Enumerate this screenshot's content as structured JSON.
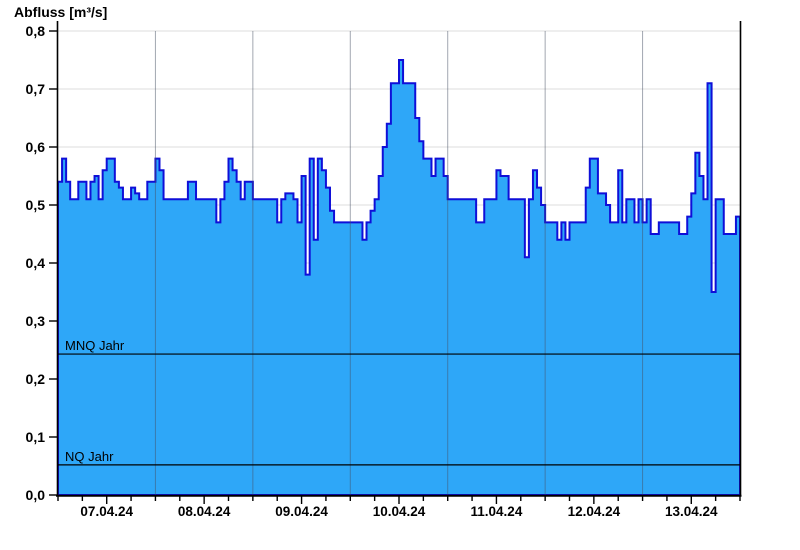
{
  "title": "Abfluss [m³/s]",
  "chart_data": {
    "type": "area",
    "title": "Abfluss [m³/s]",
    "ylabel": "Abfluss [m³/s]",
    "unit": "m³/s",
    "ylim": [
      0,
      0.8
    ],
    "y_tick_step": 0.1,
    "y_tick_labels": [
      "0,0",
      "0,1",
      "0,2",
      "0,3",
      "0,4",
      "0,5",
      "0,6",
      "0,7",
      "0,8"
    ],
    "x_tick_labels": [
      "07.04.24",
      "08.04.24",
      "09.04.24",
      "10.04.24",
      "11.04.24",
      "12.04.24",
      "13.04.24"
    ],
    "points_per_day": 24,
    "interval": "1 hour",
    "grid": true,
    "legend_position": "none",
    "series": [
      {
        "name": "Abfluss",
        "values": [
          0.54,
          0.58,
          0.54,
          0.51,
          0.51,
          0.54,
          0.54,
          0.51,
          0.54,
          0.55,
          0.51,
          0.56,
          0.58,
          0.58,
          0.54,
          0.53,
          0.51,
          0.51,
          0.53,
          0.52,
          0.51,
          0.51,
          0.54,
          0.54,
          0.58,
          0.56,
          0.51,
          0.51,
          0.51,
          0.51,
          0.51,
          0.51,
          0.54,
          0.54,
          0.51,
          0.51,
          0.51,
          0.51,
          0.51,
          0.47,
          0.51,
          0.54,
          0.58,
          0.56,
          0.54,
          0.51,
          0.54,
          0.54,
          0.51,
          0.51,
          0.51,
          0.51,
          0.51,
          0.51,
          0.47,
          0.51,
          0.52,
          0.52,
          0.51,
          0.47,
          0.55,
          0.38,
          0.58,
          0.44,
          0.58,
          0.56,
          0.53,
          0.49,
          0.47,
          0.47,
          0.47,
          0.47,
          0.47,
          0.47,
          0.47,
          0.44,
          0.47,
          0.49,
          0.51,
          0.55,
          0.6,
          0.64,
          0.71,
          0.71,
          0.75,
          0.71,
          0.71,
          0.71,
          0.65,
          0.61,
          0.58,
          0.58,
          0.55,
          0.58,
          0.58,
          0.55,
          0.51,
          0.51,
          0.51,
          0.51,
          0.51,
          0.51,
          0.51,
          0.47,
          0.47,
          0.51,
          0.51,
          0.51,
          0.56,
          0.55,
          0.55,
          0.51,
          0.51,
          0.51,
          0.51,
          0.41,
          0.51,
          0.56,
          0.53,
          0.5,
          0.47,
          0.47,
          0.47,
          0.44,
          0.47,
          0.44,
          0.47,
          0.47,
          0.47,
          0.47,
          0.53,
          0.58,
          0.58,
          0.52,
          0.52,
          0.5,
          0.47,
          0.47,
          0.56,
          0.47,
          0.51,
          0.51,
          0.47,
          0.51,
          0.47,
          0.51,
          0.45,
          0.45,
          0.47,
          0.47,
          0.47,
          0.47,
          0.47,
          0.45,
          0.45,
          0.48,
          0.52,
          0.59,
          0.55,
          0.51,
          0.71,
          0.35,
          0.51,
          0.51,
          0.45,
          0.45,
          0.45,
          0.48
        ]
      }
    ],
    "reference_lines": [
      {
        "label": "MNQ Jahr",
        "value": 0.243
      },
      {
        "label": "NQ Jahr",
        "value": 0.052
      }
    ]
  },
  "colors": {
    "background": "#FFFFFF",
    "area_fill": "#2EA7F8",
    "step_line": "#0F0FD8",
    "grid_horizontal": "#E8E8E8",
    "grid_vertical": "rgba(70,80,100,0.50)",
    "axis": "#000000",
    "reference_line": "#000000",
    "text": "#000000"
  }
}
